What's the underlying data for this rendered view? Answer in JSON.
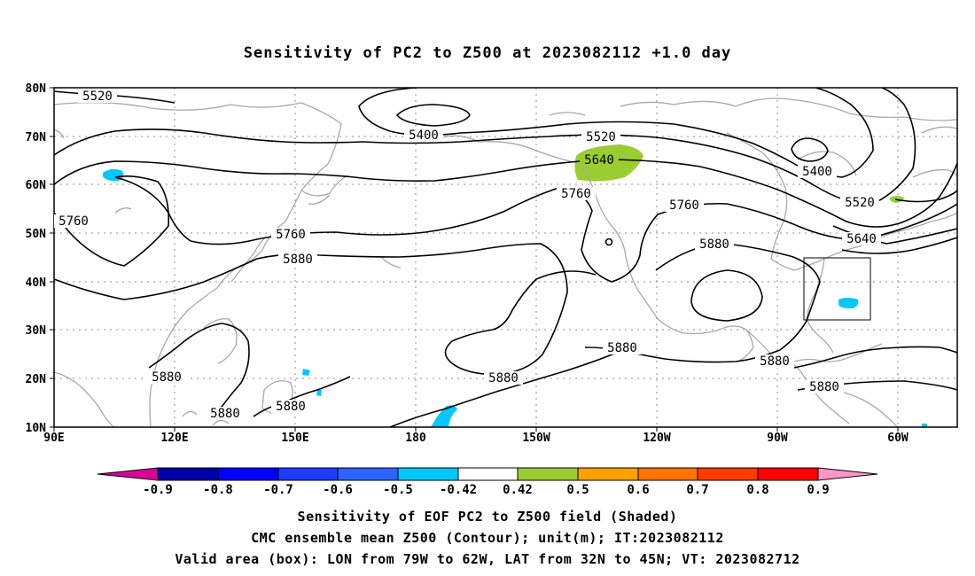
{
  "title": "Sensitivity of PC2 to Z500 at 2023082112 +1.0 day",
  "map": {
    "lat_ticks": [
      "80N",
      "70N",
      "60N",
      "50N",
      "40N",
      "30N",
      "20N",
      "10N"
    ],
    "lon_ticks": [
      "90E",
      "120E",
      "150E",
      "180",
      "150W",
      "120W",
      "90W",
      "60W"
    ],
    "contour_labels": [
      "5520",
      "5400",
      "5520",
      "5640",
      "5760",
      "5400",
      "5520",
      "5760",
      "5760",
      "5880",
      "5760",
      "5880",
      "5640",
      "5880",
      "5880",
      "5880",
      "5880",
      "5880",
      "5880",
      "5880"
    ],
    "colors": {
      "coastline": "#a8a8a8",
      "contour": "#000000",
      "grid": "#8c8c8c",
      "positive_shade": "#9acd32",
      "negative_shade": "#00c8ff"
    }
  },
  "colorbar": {
    "labels": [
      "-0.9",
      "-0.8",
      "-0.7",
      "-0.6",
      "-0.5",
      "-0.42",
      "0.42",
      "0.5",
      "0.6",
      "0.7",
      "0.8",
      "0.9"
    ],
    "colors": [
      "#d60596",
      "#0000a8",
      "#0000ff",
      "#1e3cff",
      "#2d64ff",
      "#00c8ff",
      "#ffffff",
      "#9acd32",
      "#ffa000",
      "#ff7300",
      "#ff3c00",
      "#ff0000",
      "#ff96c8"
    ]
  },
  "footer": {
    "line1": "Sensitivity of EOF PC2 to Z500 field (Shaded)",
    "line2": "CMC ensemble mean Z500 (Contour); unit(m); IT:2023082112",
    "line3": "Valid area (box): LON from 79W to 62W, LAT from 32N to 45N; VT: 2023082712"
  }
}
